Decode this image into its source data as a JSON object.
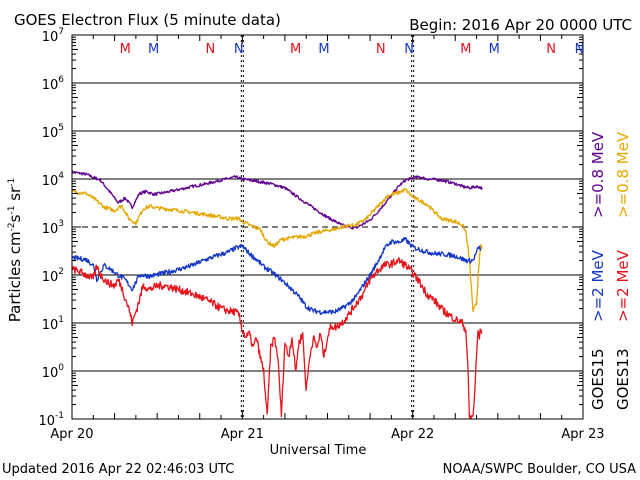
{
  "header": {
    "title": "GOES Electron Flux (5 minute data)",
    "begin": "Begin: 2016 Apr 20 0000 UTC"
  },
  "footer": {
    "updated": "Updated 2016 Apr 22 02:46:03 UTC",
    "credit": "NOAA/SWPC Boulder, CO USA"
  },
  "colors": {
    "red": "#e8121b",
    "blue": "#1437c8",
    "purple": "#600090",
    "gold": "#e6a800",
    "black": "#000000"
  },
  "chart_data": {
    "type": "line",
    "title": "GOES Electron Flux (5 minute data)",
    "xlabel": "Universal Time",
    "ylabel": "Particles cm^-2 s^-1 sr^-1",
    "ylabel_parts": {
      "base": "Particles cm",
      "e1": "-2",
      "mid1": "s",
      "e2": "-1",
      "mid2": " sr",
      "e3": "-1"
    },
    "scale": "log",
    "xlim_hours": [
      0,
      72
    ],
    "ylim": [
      0.1,
      10000000
    ],
    "x_ticks": [
      {
        "hour": 0,
        "label": "Apr 20"
      },
      {
        "hour": 24,
        "label": "Apr 21"
      },
      {
        "hour": 48,
        "label": "Apr 22"
      },
      {
        "hour": 72,
        "label": "Apr 23"
      }
    ],
    "y_ticks": [
      {
        "value": 0.1,
        "base": "10",
        "exp": "-1"
      },
      {
        "value": 1,
        "base": "10",
        "exp": "0"
      },
      {
        "value": 10,
        "base": "10",
        "exp": "1"
      },
      {
        "value": 100,
        "base": "10",
        "exp": "2"
      },
      {
        "value": 1000,
        "base": "10",
        "exp": "3"
      },
      {
        "value": 10000,
        "base": "10",
        "exp": "4"
      },
      {
        "value": 100000,
        "base": "10",
        "exp": "5"
      },
      {
        "value": 1000000,
        "base": "10",
        "exp": "6"
      },
      {
        "value": 10000000,
        "base": "10",
        "exp": "7"
      }
    ],
    "threshold": {
      "value": 1000,
      "style": "dashed"
    },
    "midnight_markers_hours": [
      24,
      48
    ],
    "mn_markers": [
      {
        "hour": 7.5,
        "letter": "M",
        "color": "red"
      },
      {
        "hour": 11.5,
        "letter": "M",
        "color": "blue"
      },
      {
        "hour": 19.5,
        "letter": "N",
        "color": "red"
      },
      {
        "hour": 23.5,
        "letter": "N",
        "color": "blue"
      },
      {
        "hour": 31.5,
        "letter": "M",
        "color": "red"
      },
      {
        "hour": 35.5,
        "letter": "M",
        "color": "blue"
      },
      {
        "hour": 43.5,
        "letter": "N",
        "color": "red"
      },
      {
        "hour": 47.5,
        "letter": "N",
        "color": "blue"
      },
      {
        "hour": 55.5,
        "letter": "M",
        "color": "red"
      },
      {
        "hour": 59.5,
        "letter": "M",
        "color": "blue"
      },
      {
        "hour": 67.5,
        "letter": "N",
        "color": "red"
      },
      {
        "hour": 71.5,
        "letter": "N",
        "color": "blue"
      }
    ],
    "legend": [
      {
        "key": "goes15_08",
        "sat": "GOES15",
        "energy": ">=0.8 MeV",
        "color": "purple"
      },
      {
        "key": "goes13_08",
        "sat": "GOES13",
        "energy": ">=0.8 MeV",
        "color": "gold"
      },
      {
        "key": "goes15_2",
        "sat": "GOES15",
        "energy": ">=2 MeV",
        "color": "blue"
      },
      {
        "key": "goes13_2",
        "sat": "GOES13",
        "energy": ">=2 MeV",
        "color": "red"
      }
    ],
    "legend_sats": [
      "GOES15",
      "GOES13"
    ],
    "series": [
      {
        "name": "GOES15 >=0.8 MeV",
        "color": "purple",
        "noise": 0.03,
        "points": [
          [
            0,
            14000
          ],
          [
            2,
            12500
          ],
          [
            4,
            9500
          ],
          [
            5.5,
            5000
          ],
          [
            6.5,
            3200
          ],
          [
            7.5,
            4000
          ],
          [
            8.5,
            2600
          ],
          [
            9.5,
            5000
          ],
          [
            10.5,
            5500
          ],
          [
            11.5,
            4800
          ],
          [
            13,
            5200
          ],
          [
            15,
            6000
          ],
          [
            17,
            7000
          ],
          [
            19,
            8000
          ],
          [
            21,
            9500
          ],
          [
            23,
            11000
          ],
          [
            24,
            10000
          ],
          [
            26,
            9000
          ],
          [
            28,
            8000
          ],
          [
            30,
            6500
          ],
          [
            32,
            4000
          ],
          [
            34,
            2500
          ],
          [
            36,
            1600
          ],
          [
            38,
            1100
          ],
          [
            39,
            1000
          ],
          [
            40,
            950
          ],
          [
            41,
            1150
          ],
          [
            42,
            1400
          ],
          [
            43,
            2000
          ],
          [
            44,
            3000
          ],
          [
            45,
            4500
          ],
          [
            46,
            7000
          ],
          [
            47,
            9500
          ],
          [
            48,
            10500
          ],
          [
            49,
            11000
          ],
          [
            50,
            10000
          ],
          [
            52,
            9500
          ],
          [
            54,
            8000
          ],
          [
            55,
            7000
          ],
          [
            56,
            6500
          ],
          [
            57,
            7000
          ],
          [
            57.8,
            6500
          ]
        ]
      },
      {
        "name": "GOES13 >=0.8 MeV",
        "color": "gold",
        "noise": 0.04,
        "points": [
          [
            0,
            5500
          ],
          [
            2,
            5000
          ],
          [
            3.5,
            3500
          ],
          [
            4.5,
            2600
          ],
          [
            6,
            2200
          ],
          [
            7,
            2800
          ],
          [
            8,
            1500
          ],
          [
            9,
            1200
          ],
          [
            10,
            2400
          ],
          [
            11,
            2700
          ],
          [
            12,
            2500
          ],
          [
            14,
            2300
          ],
          [
            16,
            2100
          ],
          [
            18,
            1900
          ],
          [
            20,
            1700
          ],
          [
            22,
            1500
          ],
          [
            23.5,
            1500
          ],
          [
            24,
            1300
          ],
          [
            25,
            1100
          ],
          [
            26.5,
            900
          ],
          [
            27.5,
            480
          ],
          [
            28.5,
            400
          ],
          [
            29.5,
            550
          ],
          [
            31,
            600
          ],
          [
            33,
            650
          ],
          [
            35,
            800
          ],
          [
            37,
            900
          ],
          [
            38.5,
            1050
          ],
          [
            40,
            1100
          ],
          [
            41.5,
            1500
          ],
          [
            43,
            2600
          ],
          [
            44.5,
            4500
          ],
          [
            46,
            5200
          ],
          [
            47,
            6000
          ],
          [
            48,
            4200
          ],
          [
            50,
            3000
          ],
          [
            52,
            1500
          ],
          [
            54,
            1300
          ],
          [
            55,
            1100
          ],
          [
            55.5,
            800
          ],
          [
            56,
            200
          ],
          [
            56.5,
            18
          ],
          [
            57,
            25
          ],
          [
            57.3,
            150
          ],
          [
            57.6,
            400
          ],
          [
            57.8,
            350
          ]
        ]
      },
      {
        "name": "GOES15 >=2 MeV",
        "color": "blue",
        "noise": 0.05,
        "points": [
          [
            0,
            230
          ],
          [
            2,
            210
          ],
          [
            3,
            160
          ],
          [
            3.5,
            80
          ],
          [
            4.5,
            160
          ],
          [
            5.5,
            130
          ],
          [
            6.5,
            100
          ],
          [
            7.5,
            80
          ],
          [
            8.5,
            50
          ],
          [
            9.5,
            100
          ],
          [
            11,
            95
          ],
          [
            13,
            110
          ],
          [
            15,
            130
          ],
          [
            17,
            160
          ],
          [
            18.5,
            200
          ],
          [
            20,
            240
          ],
          [
            21,
            270
          ],
          [
            22,
            300
          ],
          [
            23,
            360
          ],
          [
            24,
            400
          ],
          [
            25,
            280
          ],
          [
            26,
            210
          ],
          [
            27,
            150
          ],
          [
            28,
            120
          ],
          [
            29.5,
            80
          ],
          [
            31,
            50
          ],
          [
            32,
            35
          ],
          [
            33,
            22
          ],
          [
            34,
            18
          ],
          [
            35,
            17
          ],
          [
            36,
            17
          ],
          [
            37,
            17
          ],
          [
            38,
            20
          ],
          [
            39,
            25
          ],
          [
            40,
            35
          ],
          [
            41,
            60
          ],
          [
            42,
            100
          ],
          [
            43,
            180
          ],
          [
            44,
            350
          ],
          [
            45,
            500
          ],
          [
            46,
            480
          ],
          [
            47,
            550
          ],
          [
            48,
            380
          ],
          [
            49.5,
            320
          ],
          [
            51,
            280
          ],
          [
            52.5,
            270
          ],
          [
            54,
            250
          ],
          [
            55.5,
            200
          ],
          [
            56.5,
            200
          ],
          [
            57,
            300
          ],
          [
            57.3,
            380
          ],
          [
            57.6,
            350
          ]
        ]
      },
      {
        "name": "GOES13 >=2 MeV",
        "color": "red",
        "noise": 0.08,
        "points": [
          [
            0,
            130
          ],
          [
            1,
            120
          ],
          [
            2,
            100
          ],
          [
            3,
            85
          ],
          [
            3.5,
            150
          ],
          [
            4,
            100
          ],
          [
            5,
            70
          ],
          [
            6,
            60
          ],
          [
            6.5,
            80
          ],
          [
            7,
            55
          ],
          [
            8,
            20
          ],
          [
            8.5,
            10
          ],
          [
            9.5,
            30
          ],
          [
            10,
            60
          ],
          [
            11,
            50
          ],
          [
            12,
            60
          ],
          [
            13,
            60
          ],
          [
            14,
            55
          ],
          [
            15,
            50
          ],
          [
            16,
            45
          ],
          [
            17,
            40
          ],
          [
            18,
            35
          ],
          [
            19,
            30
          ],
          [
            20,
            25
          ],
          [
            21,
            20
          ],
          [
            22,
            18
          ],
          [
            23,
            17
          ],
          [
            23.5,
            15
          ],
          [
            24,
            7
          ],
          [
            24.5,
            5
          ],
          [
            25,
            6
          ],
          [
            25.5,
            3
          ],
          [
            26,
            5
          ],
          [
            26.5,
            2
          ],
          [
            27,
            1
          ],
          [
            27.5,
            0.11
          ],
          [
            28,
            3
          ],
          [
            28.5,
            5
          ],
          [
            29,
            2
          ],
          [
            29.5,
            0.12
          ],
          [
            30,
            4
          ],
          [
            30.5,
            2
          ],
          [
            31,
            5
          ],
          [
            31.5,
            1
          ],
          [
            32,
            4
          ],
          [
            32.5,
            6
          ],
          [
            33,
            0.4
          ],
          [
            33.5,
            2
          ],
          [
            34,
            5
          ],
          [
            34.5,
            3
          ],
          [
            35,
            6
          ],
          [
            35.5,
            2
          ],
          [
            36,
            5
          ],
          [
            36.5,
            9
          ],
          [
            37,
            8
          ],
          [
            38,
            10
          ],
          [
            39,
            15
          ],
          [
            40,
            25
          ],
          [
            41,
            40
          ],
          [
            42,
            80
          ],
          [
            43,
            120
          ],
          [
            44,
            160
          ],
          [
            45,
            170
          ],
          [
            46,
            200
          ],
          [
            47,
            160
          ],
          [
            48,
            110
          ],
          [
            49,
            70
          ],
          [
            50,
            40
          ],
          [
            51,
            30
          ],
          [
            52,
            20
          ],
          [
            53,
            15
          ],
          [
            54,
            12
          ],
          [
            55,
            10
          ],
          [
            55.5,
            7
          ],
          [
            55.8,
            1
          ],
          [
            56,
            0.11
          ],
          [
            56.5,
            0.11
          ],
          [
            56.8,
            0.5
          ],
          [
            57,
            2
          ],
          [
            57.2,
            7
          ],
          [
            57.4,
            5
          ],
          [
            57.6,
            8
          ],
          [
            57.8,
            6
          ]
        ]
      }
    ]
  }
}
